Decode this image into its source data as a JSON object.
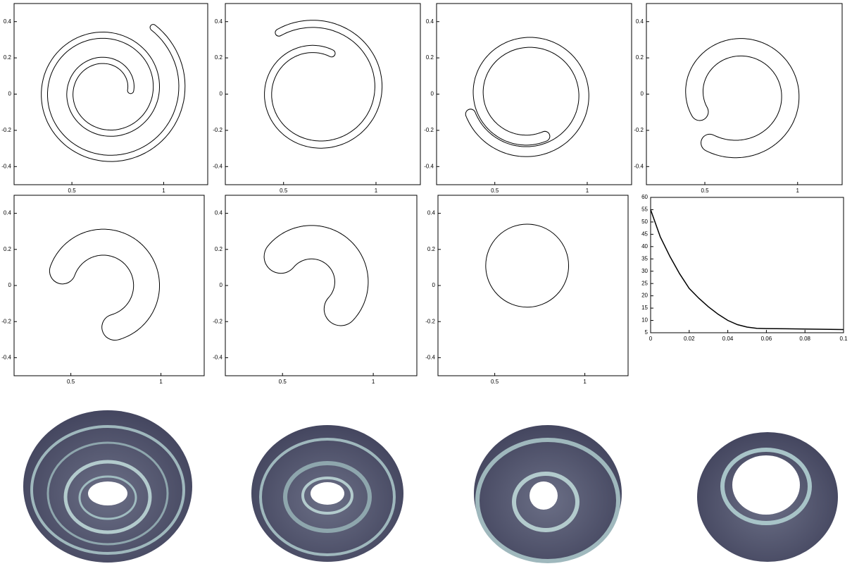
{
  "chart_data": [
    {
      "type": "curve",
      "xlim": [
        0.185,
        1.24
      ],
      "ylim": [
        -0.5,
        0.5
      ],
      "xticks": [
        0.5,
        1
      ],
      "yticks": [
        -0.4,
        -0.2,
        0,
        0.2,
        0.4
      ]
    },
    {
      "type": "curve",
      "xlim": [
        0.185,
        1.24
      ],
      "ylim": [
        -0.5,
        0.5
      ],
      "xticks": [
        0.5,
        1
      ],
      "yticks": [
        -0.4,
        -0.2,
        0,
        0.2,
        0.4
      ]
    },
    {
      "type": "curve",
      "xlim": [
        0.185,
        1.24
      ],
      "ylim": [
        -0.5,
        0.5
      ],
      "xticks": [
        0.5,
        1
      ],
      "yticks": [
        -0.4,
        -0.2,
        0,
        0.2,
        0.4
      ]
    },
    {
      "type": "curve",
      "xlim": [
        0.185,
        1.24
      ],
      "ylim": [
        -0.5,
        0.5
      ],
      "xticks": [
        0.5,
        1
      ],
      "yticks": [
        -0.4,
        -0.2,
        0,
        0.2,
        0.4
      ]
    },
    {
      "type": "curve",
      "xlim": [
        0.185,
        1.24
      ],
      "ylim": [
        -0.5,
        0.5
      ],
      "xticks": [
        0.5,
        1
      ],
      "yticks": [
        -0.4,
        -0.2,
        0,
        0.2,
        0.4
      ]
    },
    {
      "type": "curve",
      "xlim": [
        0.185,
        1.24
      ],
      "ylim": [
        -0.5,
        0.5
      ],
      "xticks": [
        0.5,
        1
      ],
      "yticks": [
        -0.4,
        -0.2,
        0,
        0.2,
        0.4
      ]
    },
    {
      "type": "curve",
      "xlim": [
        0.185,
        1.24
      ],
      "ylim": [
        -0.5,
        0.5
      ],
      "xticks": [
        0.5,
        1
      ],
      "yticks": [
        -0.4,
        -0.2,
        0,
        0.2,
        0.4
      ]
    },
    {
      "type": "line",
      "xlim": [
        0,
        0.1
      ],
      "ylim": [
        5,
        60
      ],
      "xticks": [
        0,
        0.02,
        0.04,
        0.06,
        0.08,
        0.1
      ],
      "yticks": [
        5,
        10,
        15,
        20,
        25,
        30,
        35,
        40,
        45,
        50,
        55,
        60
      ],
      "color": "#000000",
      "x": [
        0,
        0.005,
        0.01,
        0.015,
        0.02,
        0.025,
        0.03,
        0.035,
        0.04,
        0.045,
        0.05,
        0.055,
        0.06,
        0.07,
        0.08,
        0.09,
        0.1
      ],
      "values": [
        55,
        44,
        36,
        29,
        23,
        19,
        15.5,
        12.5,
        10,
        8.3,
        7.3,
        6.8,
        6.7,
        6.6,
        6.5,
        6.4,
        6.3
      ]
    }
  ]
}
